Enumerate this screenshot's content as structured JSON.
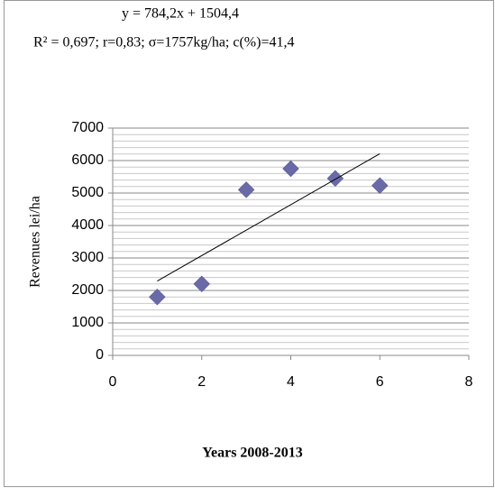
{
  "chart_data": {
    "type": "scatter",
    "title": "y = 784,2x + 1504,4",
    "subtitle": "R² = 0,697; r=0,83; σ=1757kg/ha; c(%)=41,4",
    "ylabel": "Revenues  lei/ha",
    "xlabel": "Years 2008-2013",
    "series": [
      {
        "x": [
          1,
          2,
          3,
          4,
          5,
          6
        ],
        "values": [
          1800,
          2200,
          5100,
          5750,
          5450,
          5230
        ],
        "color": "#6a6aa8"
      }
    ],
    "trendline": {
      "x": [
        1,
        6
      ],
      "values": [
        2288.6,
        6209.6
      ],
      "color": "#000000"
    },
    "xlim": [
      0,
      8
    ],
    "xticks": [
      0,
      2,
      4,
      6,
      8
    ],
    "ylim": [
      0,
      7000
    ],
    "yticks": [
      0,
      1000,
      2000,
      3000,
      4000,
      5000,
      6000,
      7000
    ],
    "yminor": [
      200,
      400,
      600,
      800,
      1200,
      1400,
      1600,
      1800,
      2200,
      2400,
      2600,
      2800,
      3200,
      3400,
      3600,
      3800,
      4200,
      4400,
      4600,
      4800,
      5200,
      5400,
      5600,
      5800,
      6200,
      6400,
      6600,
      6800
    ],
    "grid": true
  }
}
